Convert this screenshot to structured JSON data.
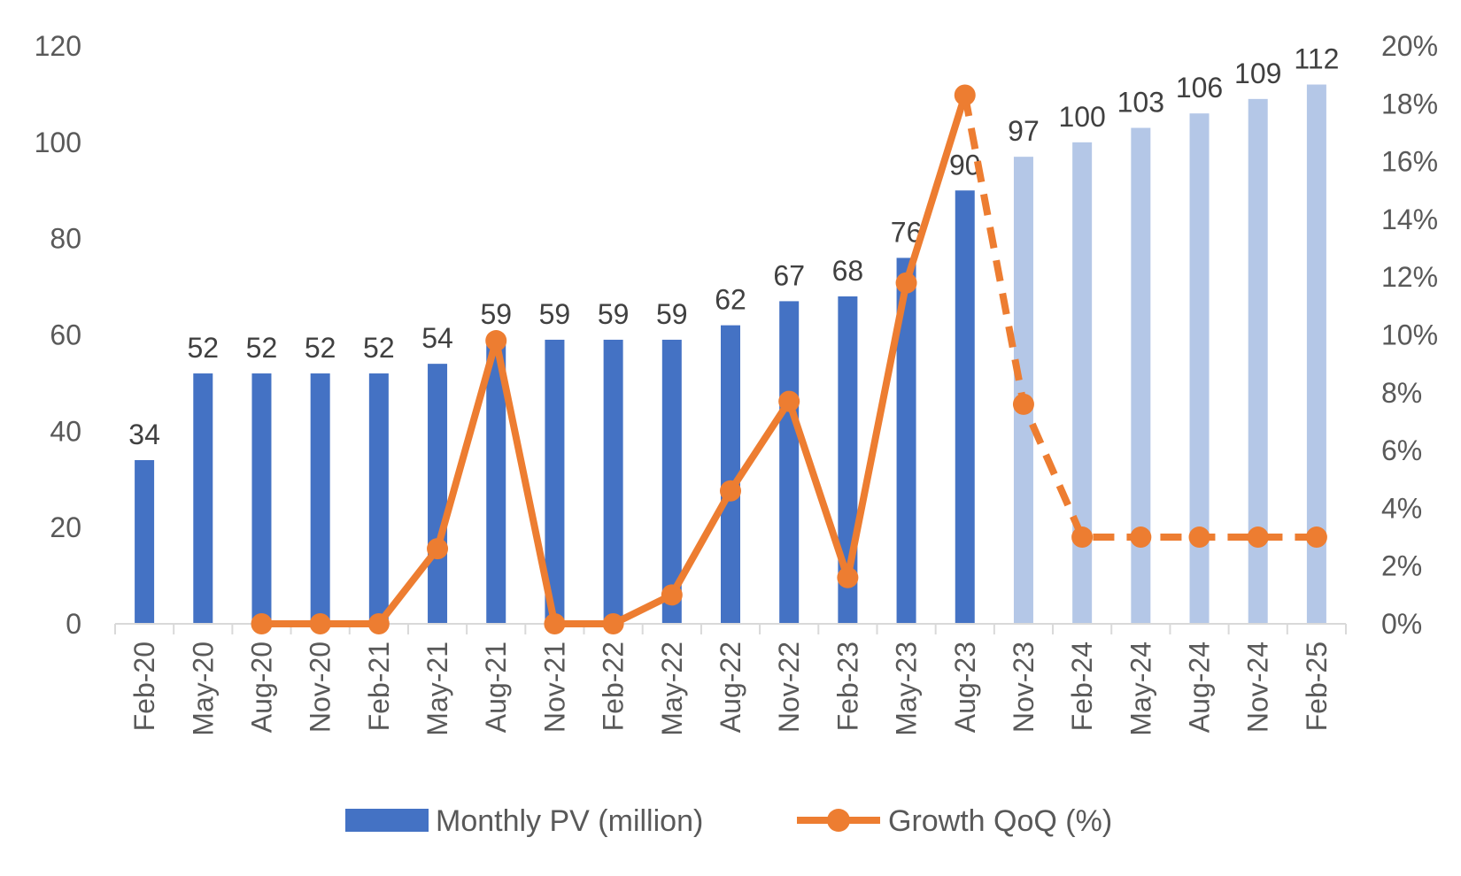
{
  "chart_data": {
    "type": "bar",
    "categories": [
      "Feb-20",
      "May-20",
      "Aug-20",
      "Nov-20",
      "Feb-21",
      "May-21",
      "Aug-21",
      "Nov-21",
      "Feb-22",
      "May-22",
      "Aug-22",
      "Nov-22",
      "Feb-23",
      "May-23",
      "Aug-23",
      "Nov-23",
      "Feb-24",
      "May-24",
      "Aug-24",
      "Nov-24",
      "Feb-25"
    ],
    "title": "",
    "xlabel": "",
    "ylabel": "",
    "ylim": [
      0,
      120
    ],
    "y2lim": [
      0,
      20
    ],
    "yticks": [
      0,
      20,
      40,
      60,
      80,
      100,
      120
    ],
    "y2ticks": [
      "0%",
      "2%",
      "4%",
      "6%",
      "8%",
      "10%",
      "12%",
      "14%",
      "16%",
      "18%",
      "20%"
    ],
    "legend_position": "bottom",
    "grid": false,
    "series": [
      {
        "name": "Monthly PV (million)",
        "type": "bar",
        "axis": "left",
        "color": "#4472C4",
        "forecast_color": "#B4C7E7",
        "values": [
          34,
          52,
          52,
          52,
          52,
          54,
          59,
          59,
          59,
          59,
          62,
          67,
          68,
          76,
          90,
          97,
          100,
          103,
          106,
          109,
          112
        ],
        "labels": [
          "34",
          "52",
          "52",
          "52",
          "52",
          "54",
          "59",
          "59",
          "59",
          "59",
          "62",
          "67",
          "68",
          "76",
          "90",
          "97",
          "100",
          "103",
          "106",
          "109",
          "112"
        ],
        "forecast_from_index": 15
      },
      {
        "name": "Growth QoQ (%)",
        "type": "line",
        "axis": "right",
        "color": "#ED7D31",
        "unit": "%",
        "values": [
          null,
          null,
          0,
          0,
          0,
          2.6,
          9.8,
          0,
          0,
          1.0,
          4.6,
          7.7,
          1.6,
          11.8,
          18.3,
          7.6,
          3.0,
          3.0,
          3.0,
          3.0,
          3.0
        ],
        "dashed_from_index": 14
      }
    ]
  }
}
